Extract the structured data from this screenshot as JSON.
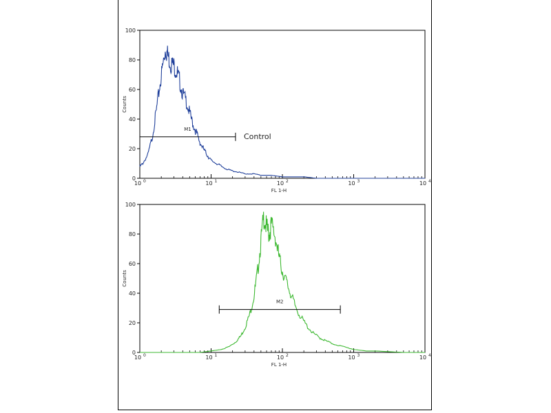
{
  "chart_data": [
    {
      "type": "line",
      "xlabel": "FL 1-H",
      "ylabel": "Counts",
      "xscale": "log",
      "xlim": [
        1,
        10000
      ],
      "ylim": [
        0,
        100
      ],
      "xticks": [
        "10",
        "10",
        "10",
        "10",
        "10"
      ],
      "xtick_exponents": [
        "0",
        "1",
        "2",
        "3",
        "4"
      ],
      "yticks": [
        "0",
        "20",
        "40",
        "60",
        "80",
        "100"
      ],
      "color": "#1f3f9a",
      "series": [
        {
          "x": [
            1,
            1.1,
            1.3,
            1.5,
            1.7,
            1.9,
            2.1,
            2.3,
            2.5,
            2.7,
            3.0,
            3.3,
            3.6,
            4.0,
            4.5,
            5.0,
            5.6,
            6.3,
            7.0,
            8.0,
            9.0,
            10,
            12,
            14,
            17,
            20,
            25,
            30,
            40,
            50,
            70,
            100,
            150,
            200,
            300,
            500,
            1000,
            2000,
            5000,
            10000
          ],
          "y": [
            8,
            10,
            16,
            28,
            45,
            62,
            76,
            88,
            82,
            78,
            76,
            72,
            66,
            57,
            52,
            44,
            36,
            30,
            24,
            19,
            15,
            12,
            10,
            8,
            6,
            5,
            4,
            3,
            3,
            2,
            2,
            1,
            1,
            1,
            0,
            0,
            0,
            0,
            0,
            0
          ]
        }
      ],
      "gate": {
        "label": "M1",
        "x_start": 1,
        "x_end": 22,
        "y": 28
      },
      "annotation": "Control"
    },
    {
      "type": "line",
      "xlabel": "FL 1-H",
      "ylabel": "Counts",
      "xscale": "log",
      "xlim": [
        1,
        10000
      ],
      "ylim": [
        0,
        100
      ],
      "xticks": [
        "10",
        "10",
        "10",
        "10",
        "10"
      ],
      "xtick_exponents": [
        "0",
        "1",
        "2",
        "3",
        "4"
      ],
      "yticks": [
        "0",
        "20",
        "40",
        "60",
        "80",
        "100"
      ],
      "color": "#3cb830",
      "series": [
        {
          "x": [
            1,
            2,
            4,
            7,
            10,
            14,
            18,
            22,
            26,
            30,
            35,
            40,
            45,
            50,
            55,
            60,
            65,
            70,
            80,
            90,
            100,
            115,
            130,
            150,
            180,
            220,
            270,
            330,
            400,
            500,
            700,
            1000,
            1500,
            2000,
            5000,
            10000
          ],
          "y": [
            0,
            0,
            0,
            0,
            1,
            2,
            4,
            7,
            11,
            17,
            26,
            38,
            55,
            75,
            92,
            84,
            80,
            86,
            78,
            64,
            55,
            47,
            40,
            32,
            24,
            18,
            13,
            10,
            8,
            6,
            4,
            2,
            1,
            1,
            0,
            0
          ]
        }
      ],
      "gate": {
        "label": "M2",
        "x_start": 13,
        "x_end": 650,
        "y": 29
      }
    }
  ]
}
